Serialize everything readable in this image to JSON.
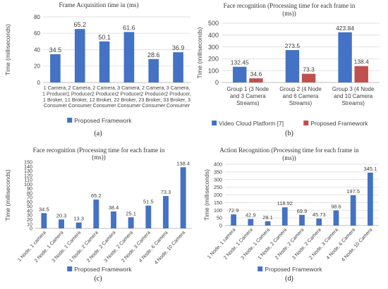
{
  "colors": {
    "blue": "#4472C4",
    "red": "#C0504D",
    "text": "#404040",
    "grid": "#d9d9d9",
    "axis": "#bfbfbf"
  },
  "panels": [
    {
      "letter": "(a)"
    },
    {
      "letter": "(b)"
    },
    {
      "letter": "(c)"
    },
    {
      "letter": "(d)"
    }
  ],
  "chart_data": [
    {
      "type": "bar",
      "title": "Frame Acquisition time in (ms)",
      "ylabel": "Time (milliseconds)",
      "ylim": [
        0,
        80
      ],
      "yticks": [
        0,
        20,
        40,
        60,
        80
      ],
      "grid": true,
      "legend": "bottom",
      "categories": [
        [
          "1 Camera,",
          "1 Producer,",
          "1 Broker, 1",
          "Consumer"
        ],
        [
          "2 Camera,",
          "1 Producer,",
          "1 Broker, 1",
          "Consumer"
        ],
        [
          "2 Camera,",
          "2 Producer,",
          "2 Broker, 2",
          "Consumer"
        ],
        [
          "3 Camera,",
          "2 Producer,",
          "2 Broker, 2",
          "Consumer"
        ],
        [
          "2 Camera,",
          "2 Producer,",
          "3 Broker, 3",
          "Consumer"
        ],
        [
          "3 Camera,",
          "2 Producer,",
          "3 Broker, 3",
          "Consumer"
        ]
      ],
      "series": [
        {
          "name": "Proposed Framework",
          "color": "#4472C4",
          "values": [
            34.5,
            65.2,
            50.1,
            61.6,
            28.6,
            36.9
          ],
          "labels": [
            "34.5",
            "65.2",
            "50.1",
            "61.6",
            "28.6",
            "36.9"
          ]
        }
      ]
    },
    {
      "type": "bar",
      "title": [
        "Face recognition (Processing time for each frame in",
        "(ms))"
      ],
      "ylabel": "Time (milliseconds)",
      "ylim": [
        0,
        500
      ],
      "yticks": [
        0,
        100,
        200,
        300,
        400,
        500
      ],
      "grid": true,
      "legend": "bottom",
      "categories": [
        [
          "Group 1 (3 Node",
          "and 3 Camera",
          "Streams)"
        ],
        [
          "Group 2 (4 Node",
          "and 6 Camera",
          "Streams)"
        ],
        [
          "Group 3 (4 Node",
          "and 10 Camera",
          "Streams)"
        ]
      ],
      "series": [
        {
          "name": "Video Cloud Platform [7]",
          "color": "#4472C4",
          "values": [
            132.45,
            273.5,
            423.84
          ],
          "labels": [
            "132.45",
            "273.5",
            "423.84"
          ]
        },
        {
          "name": "Proposed Framework",
          "color": "#C0504D",
          "values": [
            34.6,
            73.3,
            138.4
          ],
          "labels": [
            "34.6",
            "73.3",
            "138.4"
          ]
        }
      ]
    },
    {
      "type": "bar",
      "title": [
        "Face recognition (Processing time for each frame in",
        "(ms))"
      ],
      "ylabel": "Time (milliseconds)",
      "ylim": [
        0,
        150
      ],
      "yticks": [
        0,
        10,
        20,
        30,
        40,
        50,
        60,
        70,
        80,
        90,
        100,
        110,
        120,
        130,
        140,
        150
      ],
      "grid": false,
      "legend": "bottom",
      "categories": [
        "1 Node, 1 camera",
        "2 Node, 1 Camera",
        "3 Node, 1 Camera",
        "1 Node, 2 Camera",
        "2 Node, 2 Camera",
        "3 Node, 2 Camera",
        "2 Node, 3 Camera",
        "4 Node, 6 Camera",
        "4 Node, 10 Camera"
      ],
      "series": [
        {
          "name": "Proposed Framework",
          "color": "#4472C4",
          "values": [
            34.5,
            20.3,
            13.3,
            65.2,
            38.4,
            25.1,
            51.5,
            73.3,
            138.4
          ],
          "labels": [
            "34.5",
            "20.3",
            "13.3",
            "65.2",
            "38.4",
            "25.1",
            "51.5",
            "73.3",
            "138.4"
          ]
        }
      ]
    },
    {
      "type": "bar",
      "title": [
        "Action Recognition (Processing time for each frame in",
        "(ms))"
      ],
      "ylabel": "Time (milliseconds)",
      "ylim": [
        0,
        400
      ],
      "yticks": [
        0,
        50,
        100,
        150,
        200,
        250,
        300,
        350,
        400
      ],
      "grid": true,
      "legend": "bottom",
      "categories": [
        "1 Node, 1 camera",
        "2 Node, 1 Camera",
        "3 Node, 1 Camera",
        "1 Node, 2 Camera",
        "2 Node, 2 Camera",
        "3 Node, 2 Camera",
        "2 Node, 3 Camera",
        "4 Node, 6 Camera",
        "4 Node, 10 Camera"
      ],
      "series": [
        {
          "name": "Proposed Framework",
          "color": "#4472C4",
          "values": [
            72.9,
            42.9,
            28.1,
            118.92,
            69.9,
            45.73,
            98.6,
            197.5,
            345.1
          ],
          "labels": [
            "72.9",
            "42.9",
            "28.1",
            "118.92",
            "69.9",
            "45.73",
            "98.6",
            "197.5",
            "345.1"
          ]
        }
      ]
    }
  ]
}
